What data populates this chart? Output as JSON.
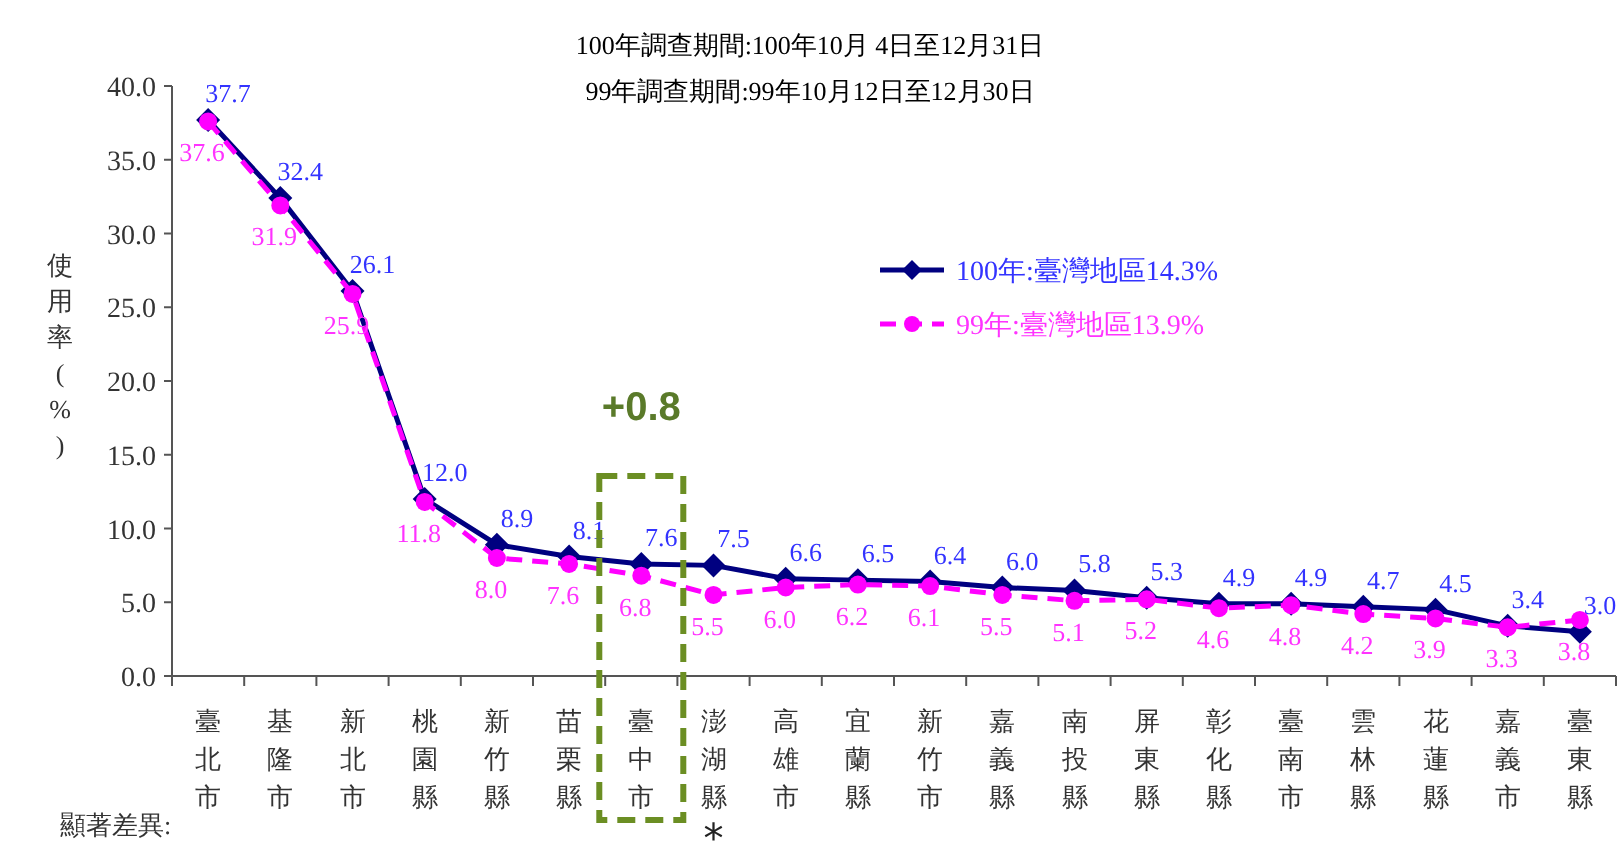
{
  "chart_data": {
    "type": "line",
    "title": "100年調查期間:100年10月 4日至12月31日",
    "subtitle": "99年調查期間:99年10月12日至12月30日",
    "ylabel": "使用率(%)",
    "categories": [
      "臺北市",
      "基隆市",
      "新北市",
      "桃園縣",
      "新竹縣",
      "苗栗縣",
      "臺中市",
      "澎湖縣",
      "高雄市",
      "宜蘭縣",
      "新竹市",
      "嘉義縣",
      "南投縣",
      "屏東縣",
      "彰化縣",
      "臺南市",
      "雲林縣",
      "花蓮縣",
      "嘉義市",
      "臺東縣"
    ],
    "series": [
      {
        "name": "100年:臺灣地區14.3%",
        "color": "#000080",
        "marker": "diamond",
        "line_style": "solid",
        "values": [
          37.7,
          32.4,
          26.1,
          12.0,
          8.9,
          8.1,
          7.6,
          7.5,
          6.6,
          6.5,
          6.4,
          6.0,
          5.8,
          5.3,
          4.9,
          4.9,
          4.7,
          4.5,
          3.4,
          3.0
        ],
        "value_labels": [
          "37.7",
          "32.4",
          "26.1",
          "12.0",
          "8.9",
          "8.1",
          "7.6",
          "7.5",
          "6.6",
          "6.5",
          "6.4",
          "6.0",
          "5.8",
          "5.3",
          "4.9",
          "4.9",
          "4.7",
          "4.5",
          "3.4",
          "3.0"
        ]
      },
      {
        "name": "99年:臺灣地區13.9%",
        "color": "#ff00ff",
        "marker": "circle",
        "line_style": "dashed",
        "values": [
          37.6,
          31.9,
          25.9,
          11.8,
          8.0,
          7.6,
          6.8,
          5.5,
          6.0,
          6.2,
          6.1,
          5.5,
          5.1,
          5.2,
          4.6,
          4.8,
          4.2,
          3.9,
          3.3,
          3.8
        ],
        "value_labels": [
          "37.6",
          "31.9",
          "25.9",
          "11.8",
          "8.0",
          "7.6",
          "6.8",
          "5.5",
          "6.0",
          "6.2",
          "6.1",
          "5.5",
          "5.1",
          "5.2",
          "4.6",
          "4.8",
          "4.2",
          "3.9",
          "3.3",
          "3.8"
        ]
      }
    ],
    "ylim": [
      0,
      40
    ],
    "yticks": [
      {
        "value": 0,
        "label": "0.0"
      },
      {
        "value": 5,
        "label": "5.0"
      },
      {
        "value": 10,
        "label": "10.0"
      },
      {
        "value": 15,
        "label": "15.0"
      },
      {
        "value": 20,
        "label": "20.0"
      },
      {
        "value": 25,
        "label": "25.0"
      },
      {
        "value": 30,
        "label": "30.0"
      },
      {
        "value": 35,
        "label": "35.0"
      },
      {
        "value": 40,
        "label": "40.0"
      }
    ],
    "legend": "top",
    "grid": false,
    "annotations": [
      "+0.8",
      "*",
      "顯著差異:"
    ]
  }
}
